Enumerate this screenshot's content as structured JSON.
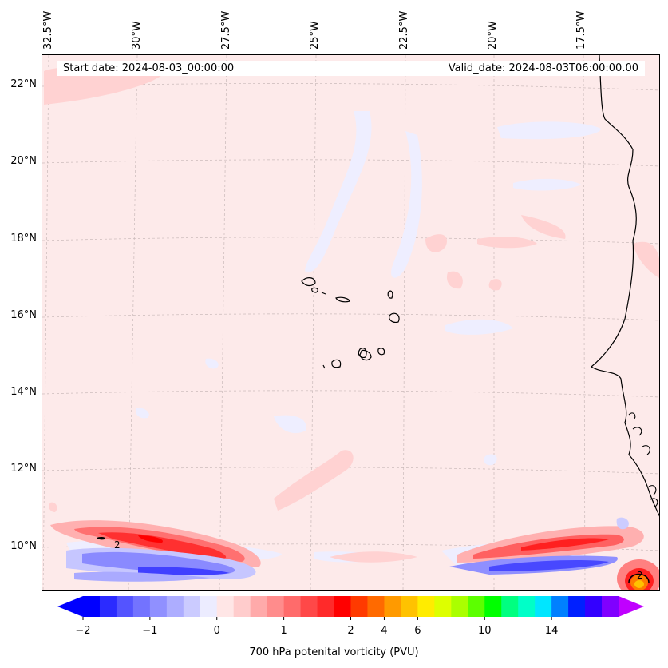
{
  "header": {
    "start_date": "Start date: 2024-08-03_00:00:00",
    "valid_date": "Valid_date: 2024-08-03T06:00:00.00"
  },
  "axes": {
    "lat_labels": [
      "22°N",
      "20°N",
      "18°N",
      "16°N",
      "14°N",
      "12°N",
      "10°N"
    ],
    "lon_labels": [
      "32.5°W",
      "30°W",
      "27.5°W",
      "25°W",
      "22.5°W",
      "20°W",
      "17.5°W"
    ]
  },
  "contour_label": "2",
  "colorbar": {
    "title": "700 hPa potenital vorticity (PVU)",
    "ticks": [
      "−2",
      "−1",
      "0",
      "1",
      "2",
      "4",
      "6",
      "10",
      "14"
    ],
    "colors": [
      "#0000ff",
      "#2b2bff",
      "#5454ff",
      "#7373ff",
      "#9090ff",
      "#adadff",
      "#cbcbff",
      "#ececff",
      "#ffe6e6",
      "#ffcccc",
      "#ffaaaa",
      "#ff8c8c",
      "#ff6b6b",
      "#ff4848",
      "#ff2a2a",
      "#ff0000",
      "#ff3a00",
      "#ff6a00",
      "#ff9a00",
      "#ffc200",
      "#ffec00",
      "#ddff00",
      "#aaff00",
      "#5cff00",
      "#00ff00",
      "#00ff80",
      "#00ffc8",
      "#00e6ff",
      "#0080ff",
      "#0020ff",
      "#3300ff",
      "#8000ff"
    ],
    "under_color": "#0000ff",
    "over_color": "#c000ff"
  }
}
